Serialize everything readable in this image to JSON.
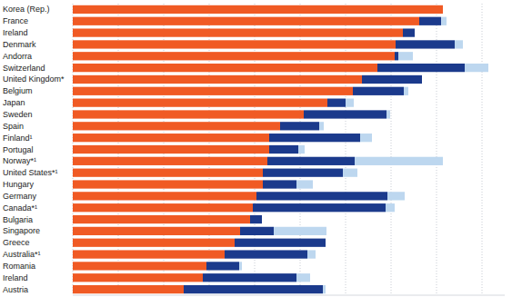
{
  "chart_data": {
    "type": "bar",
    "orientation": "horizontal",
    "stacked": true,
    "grid": true,
    "tick_labels": false,
    "categories": [
      "Korea (Rep.)",
      "France",
      "Ireland",
      "Denmark",
      "Andorra",
      "Switzerland",
      "United Kingdom*",
      "Belgium",
      "Japan",
      "Sweden",
      "Spain",
      "Finland¹",
      "Portugal",
      "Norway*¹",
      "United States*¹",
      "Hungary",
      "Germany",
      "Canada*¹",
      "Bulgaria",
      "Singapore",
      "Greece",
      "Australia*¹",
      "Romania",
      "Ireland",
      "Austria"
    ],
    "series": [
      {
        "color": "#f05a24",
        "values": [
          81.4,
          76.2,
          72.6,
          71,
          70.8,
          67,
          63.6,
          61.6,
          56,
          50.8,
          45.6,
          43.2,
          43.2,
          42.8,
          41.8,
          41.8,
          40.4,
          39.6,
          39,
          36.8,
          35.6,
          33.4,
          29.4,
          28.6,
          24.4
        ]
      },
      {
        "color": "#1b3a8c",
        "values": [
          0,
          4.8,
          2.6,
          13,
          0.8,
          19.2,
          13.2,
          11.2,
          4,
          18.2,
          8.6,
          20,
          6.4,
          19.2,
          17.6,
          7.4,
          28.8,
          29.2,
          2.6,
          7.4,
          20,
          18.2,
          7.2,
          20.6,
          30.6
        ]
      },
      {
        "color": "#bdd7ef",
        "values": [
          0,
          1.2,
          0,
          1.8,
          3.2,
          5.2,
          0,
          1,
          1.8,
          0.8,
          1,
          2.6,
          1.4,
          19.4,
          3.2,
          3.6,
          3.8,
          2,
          0,
          11.6,
          0,
          1.8,
          0.6,
          3,
          0.6
        ]
      }
    ],
    "xlim": [
      0,
      95
    ],
    "xticks": [
      0,
      10,
      20,
      30,
      40,
      50,
      60,
      70,
      80,
      90
    ]
  }
}
